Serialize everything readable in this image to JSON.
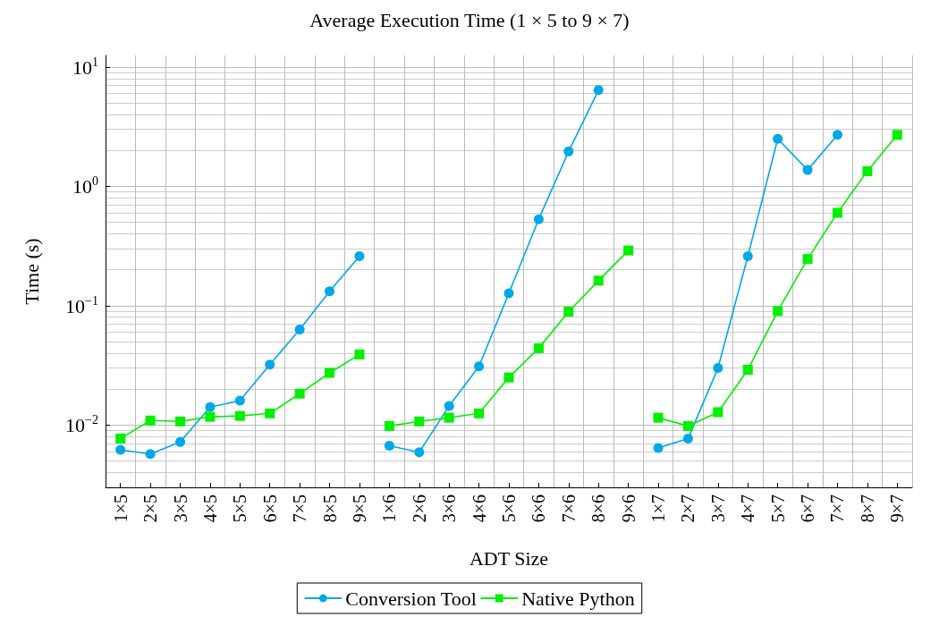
{
  "chart_data": {
    "type": "line",
    "title": "Average Execution Time (1 × 5 to 9 × 7)",
    "xlabel": "ADT Size",
    "ylabel": "Time (s)",
    "categories": [
      "1×5",
      "2×5",
      "3×5",
      "4×5",
      "5×5",
      "6×5",
      "7×5",
      "8×5",
      "9×5",
      "1×6",
      "2×6",
      "3×6",
      "4×6",
      "5×6",
      "6×6",
      "7×6",
      "8×6",
      "9×6",
      "1×7",
      "2×7",
      "3×7",
      "4×7",
      "5×7",
      "6×7",
      "7×7",
      "8×7",
      "9×7"
    ],
    "series": [
      {
        "name": "Conversion Tool",
        "color": "#00a8e8",
        "values": [
          0.0062,
          0.0057,
          0.0072,
          0.0141,
          0.016,
          0.032,
          0.063,
          0.132,
          0.26,
          null,
          null,
          null,
          null,
          null,
          null,
          null,
          null,
          null,
          null,
          null,
          null,
          null,
          null,
          null,
          null,
          null,
          null
        ]
      },
      {
        "name": "Native Python",
        "color": "#00f000",
        "marker": "square",
        "values": [
          0.0077,
          0.0109,
          0.0107,
          0.0117,
          0.0119,
          0.0125,
          0.0183,
          0.0273,
          0.039,
          null,
          null,
          null,
          null,
          null,
          null,
          null,
          null,
          null,
          null,
          null,
          null,
          null,
          null,
          null,
          null,
          null,
          null
        ]
      },
      {
        "color": "#00a8e8",
        "values": [
          null,
          null,
          null,
          null,
          null,
          null,
          null,
          null,
          null,
          0.0067,
          0.0059,
          0.0144,
          0.031,
          0.127,
          0.53,
          1.96,
          6.4,
          null,
          null,
          null,
          null,
          null,
          null,
          null,
          null,
          null,
          null
        ]
      },
      {
        "color": "#00f000",
        "marker": "square",
        "values": [
          null,
          null,
          null,
          null,
          null,
          null,
          null,
          null,
          null,
          0.0098,
          0.0107,
          0.0115,
          0.0125,
          0.025,
          0.044,
          0.089,
          0.162,
          0.29,
          null,
          null,
          null,
          null,
          null,
          null,
          null,
          null,
          null
        ]
      },
      {
        "color": "#00a8e8",
        "values": [
          null,
          null,
          null,
          null,
          null,
          null,
          null,
          null,
          null,
          null,
          null,
          null,
          null,
          null,
          null,
          null,
          null,
          null,
          0.0064,
          0.0077,
          0.03,
          0.26,
          2.5,
          1.37,
          2.7,
          null,
          null
        ]
      },
      {
        "color": "#00f000",
        "marker": "square",
        "values": [
          null,
          null,
          null,
          null,
          null,
          null,
          null,
          null,
          null,
          null,
          null,
          null,
          null,
          null,
          null,
          null,
          null,
          null,
          0.0115,
          0.0098,
          0.0128,
          0.029,
          0.09,
          0.246,
          0.6,
          1.34,
          2.7
        ]
      }
    ],
    "log": "y",
    "ylim": [
      0.003,
      12.5
    ],
    "yticks": [
      {
        "value": 0.01,
        "label": "10$^{−2}$"
      },
      {
        "value": 0.1,
        "label": "10$^{−1}$"
      },
      {
        "value": 1,
        "label": "10$^{0}$"
      },
      {
        "value": 10,
        "label": "10$^{1}$"
      }
    ],
    "grid": true,
    "legend": "bottom",
    "marker": "circle",
    "line_style": "solid"
  }
}
